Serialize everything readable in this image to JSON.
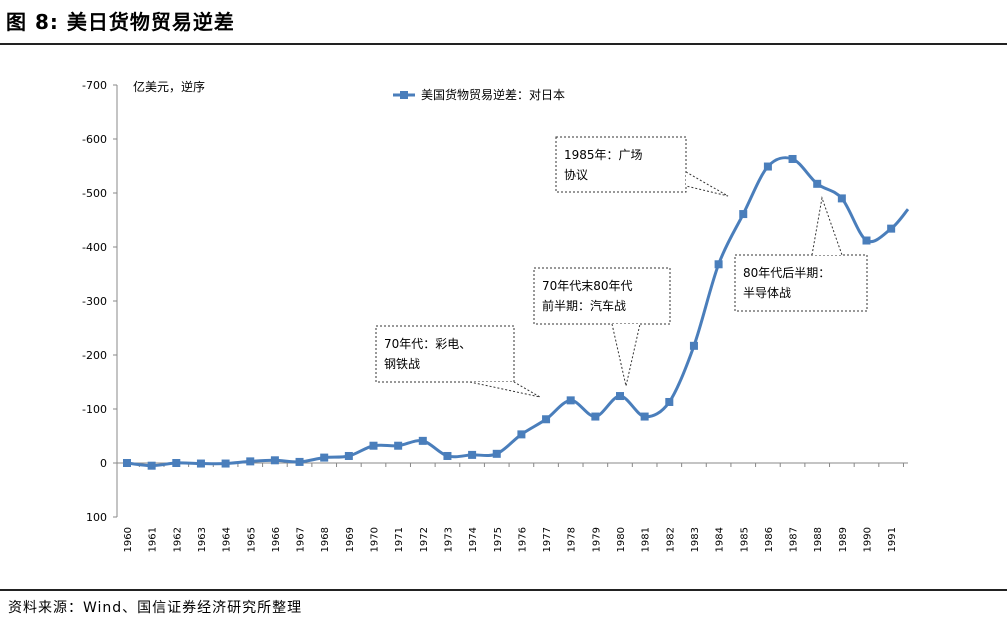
{
  "figure": {
    "title": "图 8: 美日货物贸易逆差",
    "source": "资料来源：Wind、国信证券经济研究所整理"
  },
  "chart_data": {
    "type": "line",
    "unit_label": "亿美元，逆序",
    "y_axis_reversed": true,
    "ylim": [
      100,
      -700
    ],
    "yticks": [
      -700,
      -600,
      -500,
      -400,
      -300,
      -200,
      -100,
      0,
      100
    ],
    "ytick_labels": [
      "-700",
      "-600",
      "-500",
      "-400",
      "-300",
      "-200",
      "-100",
      "0",
      "100"
    ],
    "legend_position": "top-center",
    "grid": false,
    "color": "#4a7ebb",
    "x": [
      "1960",
      "1961",
      "1962",
      "1963",
      "1964",
      "1965",
      "1966",
      "1967",
      "1968",
      "1969",
      "1970",
      "1971",
      "1972",
      "1973",
      "1974",
      "1975",
      "1976",
      "1977",
      "1978",
      "1979",
      "1980",
      "1981",
      "1982",
      "1983",
      "1984",
      "1985",
      "1986",
      "1987",
      "1988",
      "1989",
      "1990",
      "1991"
    ],
    "series": [
      {
        "name": "美国货物贸易逆差：对日本",
        "values": [
          0,
          5,
          0,
          1,
          1,
          -3,
          -5,
          -2,
          -10,
          -13,
          -32,
          -32,
          -41,
          -13,
          -15,
          -17,
          -53,
          -81,
          -116,
          -86,
          -124,
          -86,
          -113,
          -217,
          -368,
          -461,
          -549,
          -563,
          -517,
          -490,
          -412,
          -434
        ],
        "extends_beyond_last_point": true,
        "trailing_value": -470
      }
    ],
    "annotations": [
      {
        "lines": [
          "70年代：彩电、",
          "钢铁战"
        ]
      },
      {
        "lines": [
          "70年代末80年代",
          "前半期：汽车战"
        ]
      },
      {
        "lines": [
          "1985年：广场",
          "协议"
        ]
      },
      {
        "lines": [
          "80年代后半期：",
          "半导体战"
        ]
      }
    ]
  }
}
